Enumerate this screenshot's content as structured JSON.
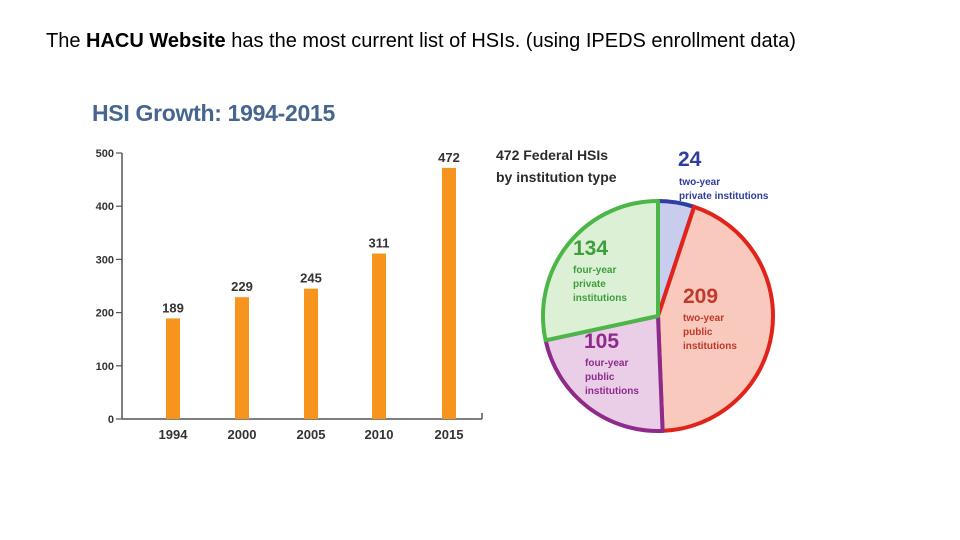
{
  "slide": {
    "lead": "The",
    "link_text": "HACU Website",
    "rest": "has the most current list of HSIs. (using IPEDS enrollment data)"
  },
  "chart_data": [
    {
      "type": "bar",
      "title": "HSI Growth: 1994-2015",
      "categories": [
        "1994",
        "2000",
        "2005",
        "2010",
        "2015"
      ],
      "values": [
        189,
        229,
        245,
        311,
        472
      ],
      "value_labels": [
        "189",
        "229",
        "245",
        "311",
        "472"
      ],
      "yticks": [
        "0",
        "100",
        "200",
        "300",
        "400",
        "500"
      ],
      "ylim": [
        0,
        500
      ],
      "xlabel": "",
      "ylabel": "",
      "grid": false,
      "bar_color": "#f7941d"
    },
    {
      "type": "pie",
      "title_line1": "472 Federal HSIs",
      "title_line2": "by institution type",
      "slices": [
        {
          "value": 24,
          "label_number": "24",
          "label_lines": [
            "two-year",
            "private institutions"
          ],
          "fill": "#c8cdee",
          "stroke": "#2f3d9e",
          "text_color": "#2f3d9e"
        },
        {
          "value": 209,
          "label_number": "209",
          "label_lines": [
            "two-year",
            "public",
            "institutions"
          ],
          "fill": "#f8c9bc",
          "stroke": "#e2231a",
          "text_color": "#c0392b"
        },
        {
          "value": 105,
          "label_number": "105",
          "label_lines": [
            "four-year",
            "public",
            "institutions"
          ],
          "fill": "#eacde6",
          "stroke": "#8e2a8b",
          "text_color": "#8e2a8b"
        },
        {
          "value": 134,
          "label_number": "134",
          "label_lines": [
            "four-year",
            "private",
            "institutions"
          ],
          "fill": "#dbf0d5",
          "stroke": "#4cb748",
          "text_color": "#3e9e3b"
        }
      ]
    }
  ]
}
